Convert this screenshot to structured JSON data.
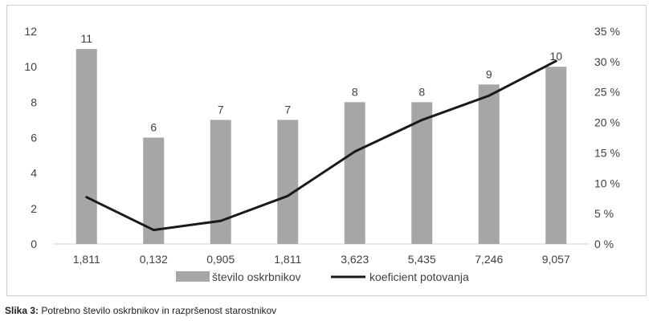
{
  "chart_data": {
    "type": "bar",
    "categories": [
      "1,811",
      "0,132",
      "0,905",
      "1,811",
      "3,623",
      "5,435",
      "7,246",
      "9,057"
    ],
    "series": [
      {
        "name": "število oskrbnikov",
        "type": "bar",
        "axis": "left",
        "values": [
          11,
          6,
          7,
          7,
          8,
          8,
          9,
          10
        ],
        "data_labels": [
          "11",
          "6",
          "7",
          "7",
          "8",
          "8",
          "9",
          "10"
        ],
        "color": "#a6a6a6"
      },
      {
        "name": "koeficient potovanja",
        "type": "line",
        "axis": "right",
        "values": [
          7.7,
          2.3,
          3.8,
          7.9,
          15.2,
          20.4,
          24.4,
          30.1
        ],
        "color": "#1a1a1a"
      }
    ],
    "y_left": {
      "ylim": [
        0,
        12
      ],
      "ticks": [
        "0",
        "2",
        "4",
        "6",
        "8",
        "10",
        "12"
      ]
    },
    "y_right": {
      "ylim": [
        0,
        35
      ],
      "ticks": [
        "0 %",
        "5 %",
        "10 %",
        "15 %",
        "20 %",
        "25 %",
        "30 %",
        "35 %"
      ]
    },
    "grid": false,
    "legend_position": "bottom"
  },
  "caption": {
    "label": "Slika 3:",
    "text": " Potrebno število oskrbnikov in razpršenost starostnikov"
  }
}
